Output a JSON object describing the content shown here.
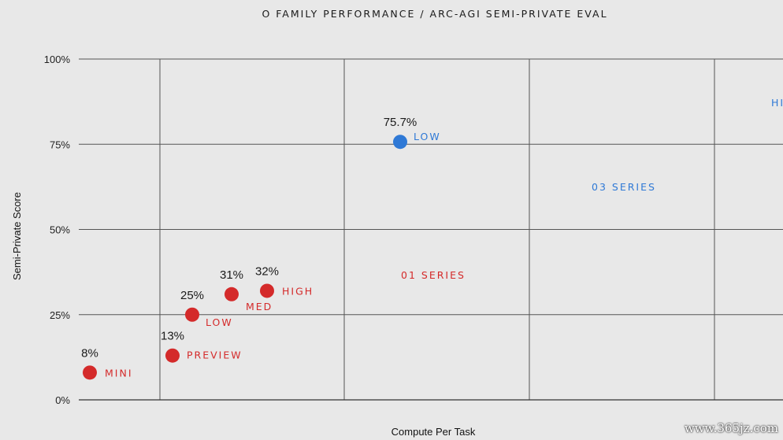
{
  "chart_data": {
    "type": "scatter",
    "title": "O FAMILY PERFORMANCE / ARC-AGI SEMI-PRIVATE EVAL",
    "xlabel": "Compute Per Task",
    "ylabel": "Semi-Private Score",
    "ylim": [
      0,
      100
    ],
    "yticks": [
      "0%",
      "25%",
      "50%",
      "75%",
      "100%"
    ],
    "grid": true,
    "series": [
      {
        "name": "01 SERIES",
        "color": "#d42a2a",
        "points": [
          {
            "label": "MINI",
            "value_label": "8%",
            "y": 8
          },
          {
            "label": "PREVIEW",
            "value_label": "13%",
            "y": 13
          },
          {
            "label": "LOW",
            "value_label": "25%",
            "y": 25
          },
          {
            "label": "MED",
            "value_label": "31%",
            "y": 31
          },
          {
            "label": "HIGH",
            "value_label": "32%",
            "y": 32
          }
        ]
      },
      {
        "name": "03 SERIES",
        "color": "#2f79d6",
        "points": [
          {
            "label": "LOW",
            "value_label": "75.7%",
            "y": 75.7
          }
        ]
      }
    ],
    "clipped_text": "HI"
  },
  "watermark": "www.365jz.com"
}
